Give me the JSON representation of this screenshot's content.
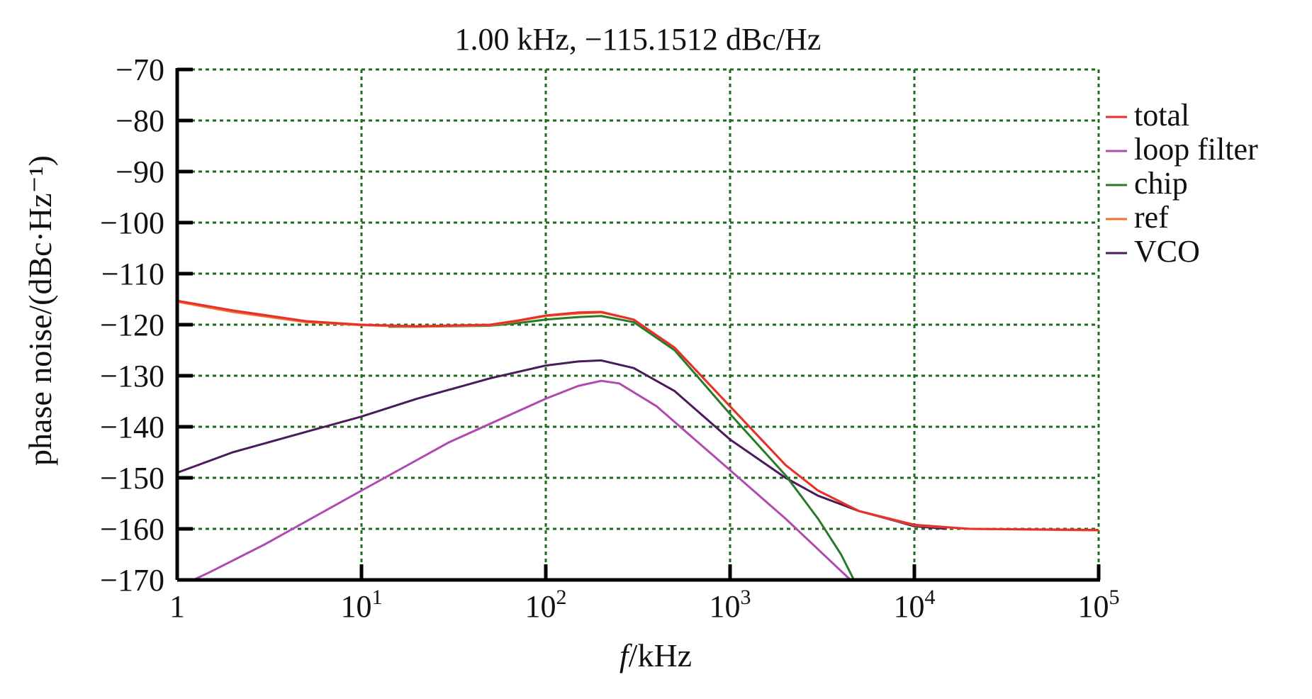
{
  "chart_data": {
    "type": "line",
    "title": "1.00 kHz, −115.1512 dBc/Hz",
    "xlabel_italic": "f",
    "xlabel_rest": "/kHz",
    "ylabel": "phase noise/(dBc·Hz⁻¹)",
    "x_scale": "log",
    "xlim": [
      1,
      100000
    ],
    "ylim": [
      -170,
      -70
    ],
    "grid": true,
    "legend_position": "right",
    "x_ticks": [
      {
        "value": 1,
        "base": "1",
        "exp": ""
      },
      {
        "value": 10,
        "base": "10",
        "exp": "1"
      },
      {
        "value": 100,
        "base": "10",
        "exp": "2"
      },
      {
        "value": 1000,
        "base": "10",
        "exp": "3"
      },
      {
        "value": 10000,
        "base": "10",
        "exp": "4"
      },
      {
        "value": 100000,
        "base": "10",
        "exp": "5"
      }
    ],
    "y_ticks": [
      {
        "value": -70,
        "label": "−70"
      },
      {
        "value": -80,
        "label": "−80"
      },
      {
        "value": -90,
        "label": "−90"
      },
      {
        "value": -100,
        "label": "−100"
      },
      {
        "value": -110,
        "label": "−110"
      },
      {
        "value": -120,
        "label": "−120"
      },
      {
        "value": -130,
        "label": "−130"
      },
      {
        "value": -140,
        "label": "−140"
      },
      {
        "value": -150,
        "label": "−150"
      },
      {
        "value": -160,
        "label": "−160"
      },
      {
        "value": -170,
        "label": "−170"
      }
    ],
    "colors": {
      "grid": "#1e6b1e",
      "axis": "#000000"
    },
    "series": [
      {
        "name": "loop filter",
        "color": "#b04ab0",
        "points": [
          [
            1,
            -171.5
          ],
          [
            1.5,
            -168.5
          ],
          [
            3,
            -163
          ],
          [
            10,
            -152.5
          ],
          [
            30,
            -143
          ],
          [
            100,
            -134.5
          ],
          [
            150,
            -132
          ],
          [
            200,
            -131
          ],
          [
            250,
            -131.5
          ],
          [
            400,
            -136
          ],
          [
            1000,
            -148.5
          ],
          [
            2000,
            -158
          ],
          [
            3000,
            -164
          ],
          [
            4500,
            -170
          ]
        ]
      },
      {
        "name": "VCO",
        "color": "#4a1a5a",
        "points": [
          [
            1,
            -149
          ],
          [
            2,
            -145
          ],
          [
            5,
            -141
          ],
          [
            10,
            -138
          ],
          [
            20,
            -134.5
          ],
          [
            50,
            -130.5
          ],
          [
            100,
            -128
          ],
          [
            150,
            -127.2
          ],
          [
            200,
            -127
          ],
          [
            300,
            -128.5
          ],
          [
            500,
            -133
          ],
          [
            1000,
            -142.5
          ],
          [
            2000,
            -150
          ],
          [
            3000,
            -153.5
          ],
          [
            5000,
            -156.5
          ],
          [
            8000,
            -158.5
          ],
          [
            10000,
            -159.5
          ],
          [
            15000,
            -160
          ]
        ]
      },
      {
        "name": "chip",
        "color": "#2a7a2a",
        "points": [
          [
            14,
            -120.4
          ],
          [
            20,
            -120.4
          ],
          [
            50,
            -120.2
          ],
          [
            70,
            -119.7
          ],
          [
            100,
            -119
          ],
          [
            150,
            -118.5
          ],
          [
            200,
            -118.3
          ],
          [
            300,
            -119.5
          ],
          [
            500,
            -125
          ],
          [
            1000,
            -137.5
          ],
          [
            2000,
            -149.5
          ],
          [
            3000,
            -158
          ],
          [
            4000,
            -165
          ],
          [
            4700,
            -170
          ]
        ]
      },
      {
        "name": "ref",
        "color": "#f07030",
        "points": [
          [
            1,
            -115.5
          ],
          [
            2,
            -117.5
          ],
          [
            5,
            -119.5
          ],
          [
            10,
            -120.1
          ],
          [
            20,
            -120.4
          ],
          [
            50,
            -120.1
          ],
          [
            70,
            -119.3
          ],
          [
            100,
            -118.3
          ],
          [
            150,
            -117.8
          ],
          [
            200,
            -117.6
          ],
          [
            300,
            -119
          ],
          [
            500,
            -124.5
          ],
          [
            1000,
            -136
          ],
          [
            2000,
            -147.5
          ],
          [
            3000,
            -152.5
          ],
          [
            5000,
            -156.5
          ],
          [
            10000,
            -159.3
          ],
          [
            20000,
            -160
          ],
          [
            100000,
            -160.3
          ]
        ]
      },
      {
        "name": "total",
        "color": "#e8302a",
        "points": [
          [
            1,
            -115.3
          ],
          [
            2,
            -117.2
          ],
          [
            5,
            -119.3
          ],
          [
            10,
            -120
          ],
          [
            20,
            -120.3
          ],
          [
            50,
            -120
          ],
          [
            70,
            -119.2
          ],
          [
            100,
            -118.2
          ],
          [
            150,
            -117.6
          ],
          [
            200,
            -117.5
          ],
          [
            300,
            -119
          ],
          [
            500,
            -124.5
          ],
          [
            1000,
            -136
          ],
          [
            2000,
            -147.5
          ],
          [
            3000,
            -152.5
          ],
          [
            5000,
            -156.5
          ],
          [
            10000,
            -159.2
          ],
          [
            20000,
            -160
          ],
          [
            100000,
            -160.2
          ]
        ]
      }
    ],
    "legend_order": [
      "total",
      "loop filter",
      "chip",
      "ref",
      "VCO"
    ]
  }
}
